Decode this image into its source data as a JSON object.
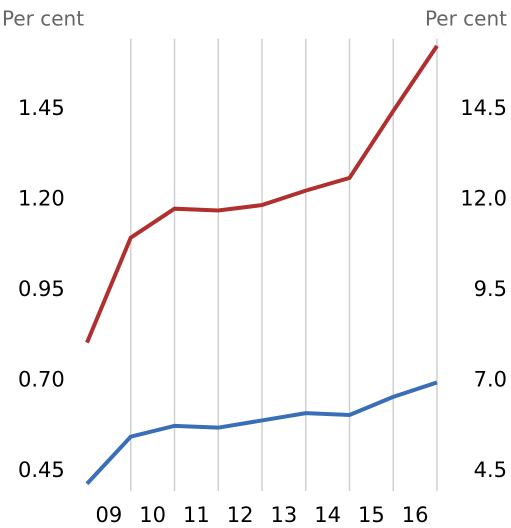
{
  "chart_data": {
    "type": "line",
    "y_label": "Per cent",
    "y2_label": "Per cent",
    "x": [
      9,
      10,
      11,
      12,
      13,
      14,
      15,
      16,
      17
    ],
    "xlim": [
      9,
      17
    ],
    "xticks": [
      {
        "value": 9.5,
        "label": "09"
      },
      {
        "value": 10.5,
        "label": "10"
      },
      {
        "value": 11.5,
        "label": "11"
      },
      {
        "value": 12.5,
        "label": "12"
      },
      {
        "value": 13.5,
        "label": "13"
      },
      {
        "value": 14.5,
        "label": "14"
      },
      {
        "value": 15.5,
        "label": "15"
      },
      {
        "value": 16.5,
        "label": "16"
      }
    ],
    "ylim": [
      0.4,
      1.65
    ],
    "yticks": [
      {
        "value": 0.45,
        "label": "0.45"
      },
      {
        "value": 0.7,
        "label": "0.70"
      },
      {
        "value": 0.95,
        "label": "0.95"
      },
      {
        "value": 1.2,
        "label": "1.20"
      },
      1.45
    ],
    "y2lim": [
      4.0,
      16.5
    ],
    "y2ticks": [
      4.5,
      {
        "value": 7,
        "label": "7.0"
      },
      9.5,
      {
        "value": 12,
        "label": "12.0"
      },
      14.5
    ],
    "x_grid": true,
    "series": [
      {
        "color": "#3a6fb8",
        "values": [
          0.42,
          0.55,
          0.58,
          0.575,
          0.595,
          0.615,
          0.61,
          0.66,
          0.7
        ]
      },
      {
        "color": "#b03030",
        "axis": "y2",
        "values": [
          8.1,
          11.0,
          11.8,
          11.75,
          11.9,
          12.3,
          12.65,
          14.5,
          16.3
        ]
      }
    ]
  }
}
